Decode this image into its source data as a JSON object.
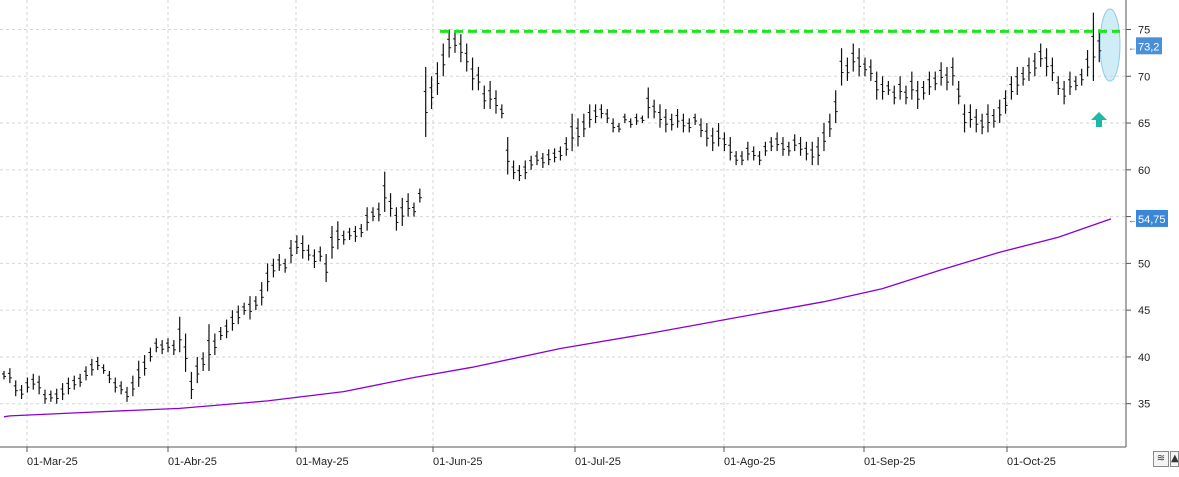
{
  "chart_data": {
    "type": "ohlc",
    "x_ticks": [
      "01-Mar-25",
      "01-Abr-25",
      "01-May-25",
      "01-Jun-25",
      "01-Jul-25",
      "01-Ago-25",
      "01-Sep-25",
      "01-Oct-25"
    ],
    "y_ticks": [
      "35",
      "40",
      "45",
      "50",
      "55",
      "60",
      "65",
      "70",
      "75"
    ],
    "ylim": [
      30,
      77
    ],
    "grid": true,
    "price_bars": [
      [
        38.5,
        37.6
      ],
      [
        38.8,
        37.2
      ],
      [
        37.5,
        35.8
      ],
      [
        37.0,
        35.5
      ],
      [
        37.8,
        36.2
      ],
      [
        38.2,
        36.5
      ],
      [
        38.0,
        36.0
      ],
      [
        36.5,
        35.0
      ],
      [
        36.4,
        35.2
      ],
      [
        36.6,
        35.0
      ],
      [
        37.2,
        35.4
      ],
      [
        37.8,
        36.0
      ],
      [
        38.0,
        36.5
      ],
      [
        38.2,
        36.8
      ],
      [
        39.0,
        37.5
      ],
      [
        39.8,
        38.0
      ],
      [
        40.0,
        38.6
      ],
      [
        39.2,
        38.2
      ],
      [
        38.5,
        37.2
      ],
      [
        37.8,
        36.2
      ],
      [
        37.4,
        36.0
      ],
      [
        36.8,
        35.2
      ],
      [
        38.0,
        35.8
      ],
      [
        39.6,
        36.8
      ],
      [
        40.2,
        38.0
      ],
      [
        41.0,
        39.5
      ],
      [
        42.0,
        40.5
      ],
      [
        41.8,
        40.3
      ],
      [
        42.0,
        40.5
      ],
      [
        41.8,
        40.2
      ],
      [
        44.3,
        40.5
      ],
      [
        42.5,
        38.4
      ],
      [
        38.4,
        35.5
      ],
      [
        40.0,
        37.2
      ],
      [
        40.5,
        38.5
      ],
      [
        43.5,
        38.5
      ],
      [
        42.5,
        40.2
      ],
      [
        43.2,
        41.8
      ],
      [
        44.0,
        42.0
      ],
      [
        45.0,
        42.8
      ],
      [
        45.5,
        43.5
      ],
      [
        45.8,
        44.5
      ],
      [
        46.5,
        44.0
      ],
      [
        46.5,
        45.0
      ],
      [
        48.0,
        45.5
      ],
      [
        50.0,
        47.0
      ],
      [
        50.5,
        48.5
      ],
      [
        51.0,
        49.2
      ],
      [
        50.5,
        49.0
      ],
      [
        52.5,
        50.0
      ],
      [
        53.0,
        51.0
      ],
      [
        53.0,
        50.5
      ],
      [
        52.0,
        50.3
      ],
      [
        51.5,
        49.5
      ],
      [
        51.8,
        50.2
      ],
      [
        51.0,
        48.0
      ],
      [
        54.0,
        50.5
      ],
      [
        54.5,
        51.5
      ],
      [
        53.5,
        52.0
      ],
      [
        53.8,
        52.5
      ],
      [
        54.0,
        52.3
      ],
      [
        54.2,
        52.8
      ],
      [
        56.0,
        53.5
      ],
      [
        56.0,
        54.5
      ],
      [
        56.5,
        54.5
      ],
      [
        59.8,
        55.5
      ],
      [
        57.5,
        55.0
      ],
      [
        56.0,
        53.5
      ],
      [
        57.0,
        54.0
      ],
      [
        57.5,
        55.0
      ],
      [
        56.5,
        55.0
      ],
      [
        58.0,
        56.5
      ],
      [
        71.0,
        63.5
      ],
      [
        70.0,
        66.5
      ],
      [
        71.5,
        68.0
      ],
      [
        73.5,
        70.0
      ],
      [
        75.0,
        72.0
      ],
      [
        74.8,
        72.5
      ],
      [
        74.5,
        71.5
      ],
      [
        73.5,
        70.5
      ],
      [
        72.0,
        68.5
      ],
      [
        71.0,
        68.5
      ],
      [
        69.0,
        66.5
      ],
      [
        69.5,
        66.5
      ],
      [
        68.5,
        66.0
      ],
      [
        67.0,
        65.5
      ],
      [
        63.5,
        59.5
      ],
      [
        61.0,
        59.0
      ],
      [
        60.5,
        58.8
      ],
      [
        61.0,
        59.0
      ],
      [
        61.5,
        60.0
      ],
      [
        62.0,
        60.5
      ],
      [
        61.8,
        60.2
      ],
      [
        62.2,
        60.5
      ],
      [
        62.3,
        60.8
      ],
      [
        62.5,
        61.0
      ],
      [
        63.5,
        61.5
      ],
      [
        66.0,
        62.0
      ],
      [
        65.5,
        62.5
      ],
      [
        66.0,
        63.5
      ],
      [
        67.0,
        64.5
      ],
      [
        67.0,
        65.0
      ],
      [
        67.0,
        65.5
      ],
      [
        66.5,
        65.0
      ],
      [
        65.5,
        64.0
      ],
      [
        65.0,
        64.0
      ],
      [
        66.0,
        65.0
      ],
      [
        65.5,
        64.5
      ],
      [
        66.0,
        64.8
      ],
      [
        65.8,
        65.0
      ],
      [
        68.8,
        65.5
      ],
      [
        67.5,
        65.5
      ],
      [
        67.0,
        64.5
      ],
      [
        66.5,
        64.0
      ],
      [
        66.0,
        64.2
      ],
      [
        66.5,
        64.5
      ],
      [
        66.0,
        64.0
      ],
      [
        65.5,
        64.0
      ],
      [
        66.0,
        64.8
      ],
      [
        65.5,
        63.5
      ],
      [
        65.0,
        62.5
      ],
      [
        64.5,
        62.0
      ],
      [
        65.0,
        62.5
      ],
      [
        64.0,
        62.0
      ],
      [
        63.5,
        61.0
      ],
      [
        62.0,
        60.5
      ],
      [
        62.0,
        60.5
      ],
      [
        63.0,
        61.0
      ],
      [
        62.5,
        61.0
      ],
      [
        62.0,
        60.5
      ],
      [
        63.0,
        61.5
      ],
      [
        63.5,
        62.0
      ],
      [
        64.0,
        62.0
      ],
      [
        63.5,
        61.5
      ],
      [
        63.0,
        61.5
      ],
      [
        63.8,
        62.0
      ],
      [
        63.5,
        61.5
      ],
      [
        63.0,
        61.0
      ],
      [
        63.0,
        60.5
      ],
      [
        63.5,
        60.5
      ],
      [
        65.0,
        62.0
      ],
      [
        66.0,
        63.5
      ],
      [
        68.5,
        65.0
      ],
      [
        73.0,
        69.0
      ],
      [
        72.0,
        69.5
      ],
      [
        73.5,
        70.5
      ],
      [
        73.0,
        70.0
      ],
      [
        72.0,
        70.0
      ],
      [
        71.8,
        69.5
      ],
      [
        70.5,
        67.5
      ],
      [
        70.0,
        67.5
      ],
      [
        69.5,
        68.0
      ],
      [
        69.0,
        67.0
      ],
      [
        70.0,
        67.5
      ],
      [
        69.0,
        67.0
      ],
      [
        70.5,
        67.5
      ],
      [
        69.5,
        66.5
      ],
      [
        69.5,
        67.5
      ],
      [
        70.5,
        68.0
      ],
      [
        70.5,
        68.5
      ],
      [
        71.5,
        69.0
      ],
      [
        71.0,
        68.5
      ],
      [
        72.0,
        69.0
      ],
      [
        69.5,
        67.0
      ],
      [
        67.0,
        64.0
      ],
      [
        67.0,
        64.5
      ],
      [
        66.5,
        64.0
      ],
      [
        66.0,
        63.8
      ],
      [
        67.0,
        64.0
      ],
      [
        66.5,
        64.5
      ],
      [
        67.5,
        65.0
      ],
      [
        68.5,
        66.0
      ],
      [
        70.0,
        67.5
      ],
      [
        71.0,
        68.0
      ],
      [
        71.0,
        69.0
      ],
      [
        72.0,
        69.5
      ],
      [
        72.5,
        70.0
      ],
      [
        73.5,
        71.0
      ],
      [
        73.0,
        70.0
      ],
      [
        72.0,
        69.5
      ],
      [
        70.0,
        68.0
      ],
      [
        69.5,
        67.0
      ],
      [
        70.5,
        68.0
      ],
      [
        70.0,
        68.5
      ],
      [
        70.8,
        69.0
      ],
      [
        72.8,
        70.0
      ],
      [
        76.8,
        69.5
      ],
      [
        75.0,
        71.5
      ]
    ],
    "series": [
      {
        "x": [
          0,
          1,
          15,
          30,
          45,
          58,
          70,
          80,
          95,
          110,
          125,
          140,
          150,
          160,
          170,
          180,
          189
        ],
        "values": [
          33.6,
          33.7,
          34.1,
          34.5,
          35.3,
          36.3,
          37.8,
          38.9,
          40.9,
          42.5,
          44.2,
          45.9,
          47.3,
          49.3,
          51.2,
          52.8,
          54.75
        ]
      }
    ],
    "resistance_level": 74.8,
    "last_price_label": "73,2",
    "sma_label": "54,75"
  },
  "colors": {
    "bars": "#111111",
    "sma_line": "#8a00d4",
    "resistance_line": "#1ee61e",
    "last_price_badge": "#4a90d9",
    "sma_badge": "#3a86d8",
    "highlight_ellipse": "#a8dcf0",
    "up_arrow": "#1db8a8",
    "grid": "#d6d6d6"
  },
  "icons": {
    "up_arrow": "arrow-up-icon",
    "corner_buttons": [
      "wave-icon",
      "triangle-icon"
    ]
  },
  "corner_buttons": [
    "≋",
    "▲"
  ]
}
